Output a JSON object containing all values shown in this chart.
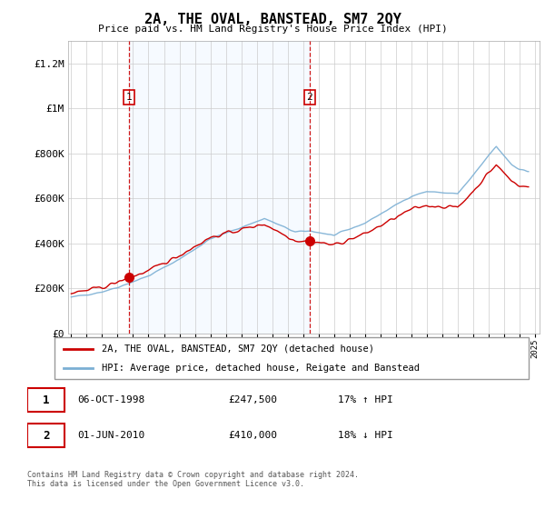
{
  "title": "2A, THE OVAL, BANSTEAD, SM7 2QY",
  "subtitle": "Price paid vs. HM Land Registry's House Price Index (HPI)",
  "footer": "Contains HM Land Registry data © Crown copyright and database right 2024.\nThis data is licensed under the Open Government Licence v3.0.",
  "legend_line1": "2A, THE OVAL, BANSTEAD, SM7 2QY (detached house)",
  "legend_line2": "HPI: Average price, detached house, Reigate and Banstead",
  "sale1_label": "1",
  "sale1_date": "06-OCT-1998",
  "sale1_price": "£247,500",
  "sale1_hpi": "17% ↑ HPI",
  "sale2_label": "2",
  "sale2_date": "01-JUN-2010",
  "sale2_price": "£410,000",
  "sale2_hpi": "18% ↓ HPI",
  "hpi_color": "#7bafd4",
  "sale_color": "#cc0000",
  "vline_color": "#cc0000",
  "shade_color": "#ddeeff",
  "ylim": [
    0,
    1300000
  ],
  "yticks": [
    0,
    200000,
    400000,
    600000,
    800000,
    1000000,
    1200000
  ],
  "ytick_labels": [
    "£0",
    "£200K",
    "£400K",
    "£600K",
    "£800K",
    "£1M",
    "£1.2M"
  ],
  "sale1_x": 1998.75,
  "sale1_y": 247500,
  "sale2_x": 2010.42,
  "sale2_y": 410000,
  "xmin": 1994.8,
  "xmax": 2025.3
}
